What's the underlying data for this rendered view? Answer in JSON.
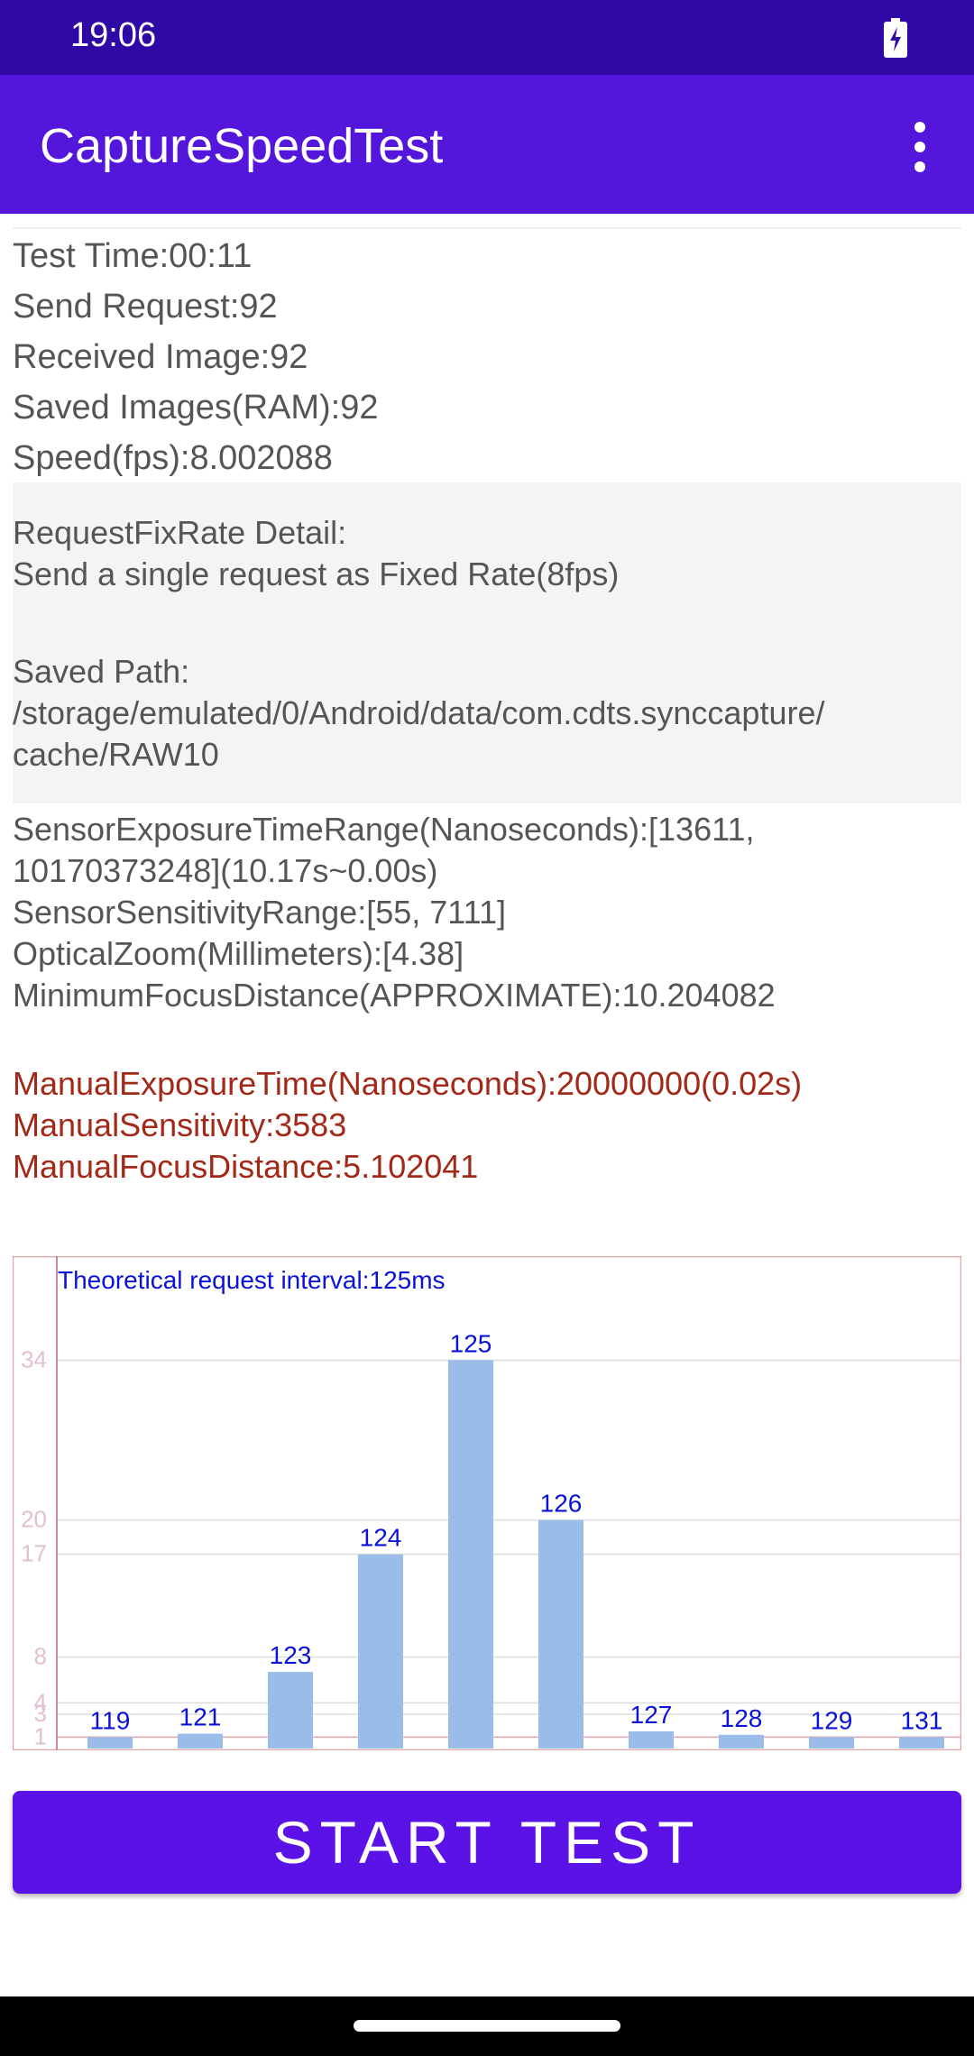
{
  "status_bar": {
    "time": "19:06",
    "battery_icon": "battery-charging-icon"
  },
  "app_bar": {
    "title": "CaptureSpeedTest",
    "menu_icon": "more-vert-icon"
  },
  "stats": [
    "Test Time:00:11",
    "Send Request:92",
    "Received Image:92",
    "Saved Images(RAM):92",
    "Speed(fps):8.002088"
  ],
  "detail": {
    "heading": "RequestFixRate Detail:",
    "description": "Send a single request as Fixed Rate(8fps)",
    "saved_path_label": "Saved Path:",
    "saved_path_line1": "/storage/emulated/0/Android/data/com.cdts.synccapture/",
    "saved_path_line2": "cache/RAW10"
  },
  "sensor_info": [
    "SensorExposureTimeRange(Nanoseconds):[13611,",
    "10170373248](10.17s~0.00s)",
    "SensorSensitivityRange:[55, 7111]",
    "OpticalZoom(Millimeters):[4.38]",
    "MinimumFocusDistance(APPROXIMATE):10.204082"
  ],
  "manual_settings": [
    "ManualExposureTime(Nanoseconds):20000000(0.02s)",
    "ManualSensitivity:3583",
    "ManualFocusDistance:5.102041"
  ],
  "chart_data": {
    "type": "bar",
    "title": "Theoretical request interval:125ms",
    "categories": [
      "119",
      "121",
      "123",
      "124",
      "125",
      "126",
      "127",
      "128",
      "129",
      "131"
    ],
    "values": [
      1,
      1.3,
      6.7,
      17,
      34,
      20,
      1.5,
      1.2,
      1,
      1
    ],
    "y_ticks": [
      1,
      3,
      4,
      8,
      17,
      20,
      34
    ],
    "ylim": [
      0,
      39
    ],
    "bar_color": "#99bce8",
    "label_color": "#0a12d8",
    "grid": true
  },
  "start_button": {
    "label": "START TEST"
  }
}
